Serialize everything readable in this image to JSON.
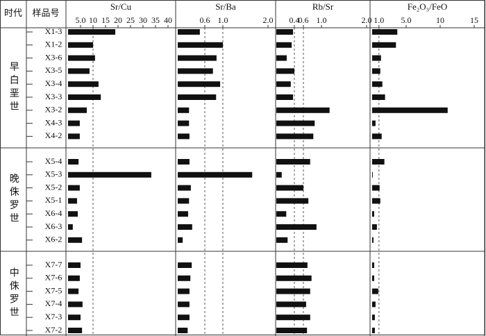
{
  "table": {
    "headers": [
      "时代",
      "样品号"
    ],
    "groups": [
      {
        "era": "早白垩世",
        "samples": [
          "X1-3",
          "X1-2",
          "X3-6",
          "X3-5",
          "X3-4",
          "X3-3",
          "X3-2",
          "X4-3",
          "X4-2"
        ]
      },
      {
        "era": "晚侏罗世",
        "samples": [
          "X5-4",
          "X5-3",
          "X5-2",
          "X5-1",
          "X6-4",
          "X6-3",
          "X6-2"
        ]
      },
      {
        "era": "中侏罗世",
        "samples": [
          "X7-7",
          "X7-6",
          "X7-5",
          "X7-4",
          "X7-3",
          "X7-2"
        ]
      }
    ]
  },
  "chart_data": [
    {
      "type": "bar",
      "title": "Sr/Cu",
      "color": "#111111",
      "values": [
        18.9,
        10,
        10.8,
        8.6,
        12.2,
        13.1,
        7.5,
        4.7,
        4.7,
        4.2,
        33.3,
        4.7,
        3.6,
        3.9,
        1.9,
        5.6,
        5,
        4.7,
        4.2,
        5.8,
        5,
        5.6
      ],
      "xlim": [
        0,
        40
      ],
      "xticks": [
        {
          "value": 5,
          "label": "5.0"
        },
        10,
        15,
        20,
        25,
        30,
        35,
        40
      ],
      "reference_lines": [
        10
      ]
    },
    {
      "type": "bar",
      "title": "Sr/Ba",
      "color": "#111111",
      "values": [
        0.49,
        1.0,
        0.86,
        0.78,
        0.94,
        0.85,
        0.25,
        0.25,
        0.26,
        0.26,
        1.65,
        0.29,
        0.25,
        0.23,
        0.32,
        0.11,
        0.31,
        0.28,
        0.26,
        0.26,
        0.26,
        0.22
      ],
      "xlim": [
        0,
        2
      ],
      "xticks": [
        0.6,
        {
          "value": 1,
          "label": "1.0"
        },
        {
          "value": 2,
          "label": "2.0"
        }
      ],
      "reference_lines": [
        0.6,
        1
      ]
    },
    {
      "type": "bar",
      "title": "Rb/Sr",
      "color": "#111111",
      "values": [
        0.37,
        0.34,
        0.23,
        0.4,
        0.32,
        0.37,
        1.18,
        0.85,
        0.82,
        0.75,
        0.12,
        0.6,
        0.71,
        0.22,
        0.89,
        0.25,
        0.69,
        0.78,
        0.75,
        0.66,
        0.75,
        0.68
      ],
      "xlim": [
        0,
        2
      ],
      "xticks": [
        0.4,
        0.6,
        {
          "value": 1,
          "label": "1.0"
        },
        {
          "value": 2,
          "label": "2.0"
        }
      ],
      "reference_lines": [
        0.4,
        0.6
      ]
    },
    {
      "type": "bar",
      "title": "Fe₂O₃/FeO",
      "color": "#111111",
      "values": [
        3.7,
        3.5,
        1.3,
        1.2,
        1.5,
        1.9,
        11.1,
        0.5,
        1.4,
        1.8,
        0.1,
        1.1,
        1.2,
        0.3,
        0.7,
        0.2,
        0.3,
        0.3,
        0.9,
        0.5,
        0.4,
        0.4
      ],
      "xlim": [
        0,
        15
      ],
      "xticks": [
        {
          "value": 1,
          "label": "1.0"
        },
        {
          "value": 5,
          "label": "5.0"
        },
        10,
        15
      ],
      "reference_lines": [
        1
      ]
    }
  ]
}
